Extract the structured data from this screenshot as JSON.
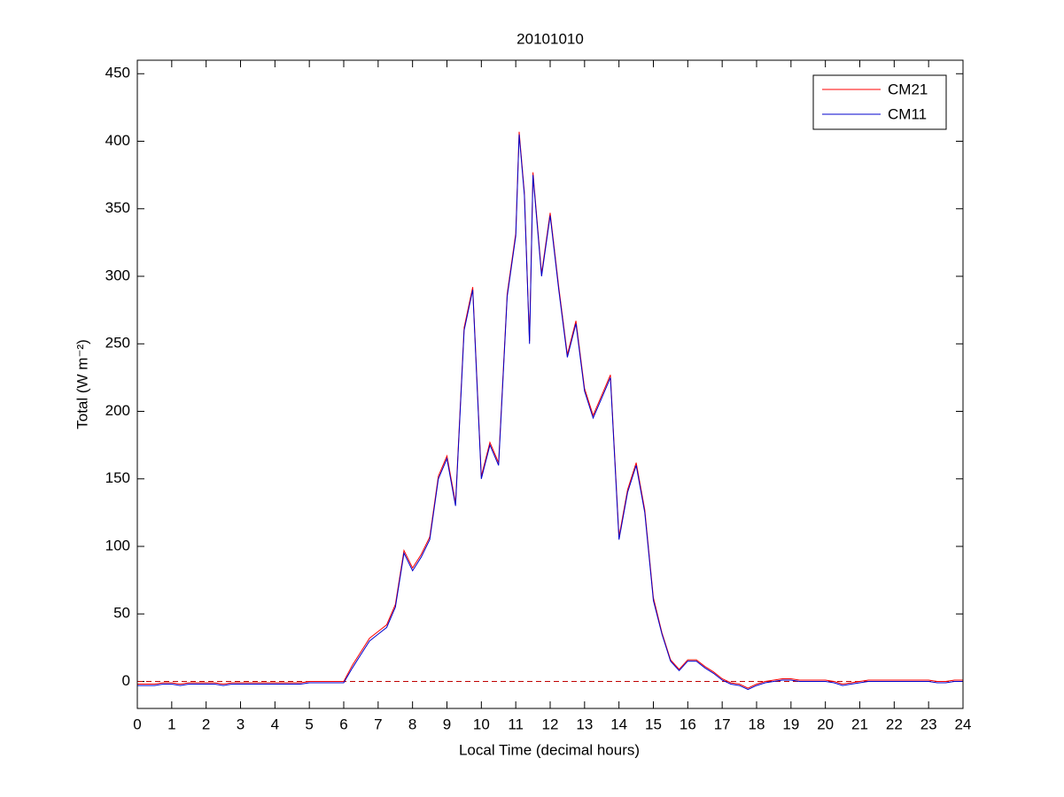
{
  "chart_data": {
    "type": "line",
    "title": "20101010",
    "xlabel": "Local Time (decimal hours)",
    "ylabel": "Total (W m⁻²)",
    "x": [
      0,
      0.25,
      0.5,
      0.75,
      1,
      1.25,
      1.5,
      1.75,
      2,
      2.25,
      2.5,
      2.75,
      3,
      3.25,
      3.5,
      3.75,
      4,
      4.25,
      4.5,
      4.75,
      5,
      5.25,
      5.5,
      5.75,
      6,
      6.25,
      6.5,
      6.75,
      7,
      7.25,
      7.5,
      7.75,
      8,
      8.25,
      8.5,
      8.75,
      9,
      9.25,
      9.5,
      9.75,
      10,
      10.25,
      10.5,
      10.75,
      11,
      11.1,
      11.25,
      11.4,
      11.5,
      11.75,
      12,
      12.25,
      12.5,
      12.75,
      13,
      13.25,
      13.5,
      13.75,
      14,
      14.25,
      14.5,
      14.75,
      15,
      15.25,
      15.5,
      15.75,
      16,
      16.25,
      16.5,
      16.75,
      17,
      17.25,
      17.5,
      17.75,
      18,
      18.25,
      18.5,
      18.75,
      19,
      19.25,
      19.5,
      19.75,
      20,
      20.25,
      20.5,
      20.75,
      21,
      21.25,
      21.5,
      21.75,
      22,
      22.25,
      22.5,
      22.75,
      23,
      23.25,
      23.5,
      23.75,
      24
    ],
    "series": [
      {
        "name": "CM21",
        "color": "#ff0000",
        "values": [
          -2,
          -2,
          -2,
          -1,
          -1,
          -2,
          -1,
          -1,
          -1,
          -1,
          -2,
          -1,
          -1,
          -1,
          -1,
          -1,
          -1,
          -1,
          -1,
          -1,
          0,
          0,
          0,
          0,
          0,
          12,
          22,
          32,
          37,
          42,
          57,
          97,
          84,
          94,
          107,
          152,
          167,
          132,
          262,
          292,
          152,
          177,
          162,
          287,
          332,
          407,
          362,
          252,
          377,
          302,
          347,
          292,
          242,
          267,
          217,
          197,
          212,
          227,
          107,
          142,
          162,
          127,
          62,
          36,
          16,
          9,
          16,
          16,
          11,
          7,
          2,
          -1,
          -2,
          -5,
          -2,
          0,
          1,
          2,
          2,
          1,
          1,
          1,
          1,
          0,
          -2,
          -1,
          0,
          1,
          1,
          1,
          1,
          1,
          1,
          1,
          1,
          0,
          0,
          1,
          1
        ]
      },
      {
        "name": "CM11",
        "color": "#0000cc",
        "values": [
          -3,
          -3,
          -3,
          -2,
          -2,
          -3,
          -2,
          -2,
          -2,
          -2,
          -3,
          -2,
          -2,
          -2,
          -2,
          -2,
          -2,
          -2,
          -2,
          -2,
          -1,
          -1,
          -1,
          -1,
          -1,
          10,
          20,
          30,
          35,
          40,
          55,
          95,
          82,
          92,
          105,
          150,
          165,
          130,
          260,
          290,
          150,
          175,
          160,
          285,
          330,
          405,
          360,
          250,
          375,
          300,
          345,
          290,
          240,
          265,
          215,
          195,
          210,
          225,
          105,
          140,
          160,
          125,
          60,
          35,
          15,
          8,
          15,
          15,
          10,
          6,
          1,
          -2,
          -3,
          -6,
          -3,
          -1,
          0,
          1,
          1,
          0,
          0,
          0,
          0,
          -1,
          -3,
          -2,
          -1,
          0,
          0,
          0,
          0,
          0,
          0,
          0,
          0,
          -1,
          -1,
          0,
          0
        ]
      }
    ],
    "hline": {
      "value": 0,
      "color": "#c00000"
    },
    "xlim": [
      0,
      24
    ],
    "xticks": [
      0,
      1,
      2,
      3,
      4,
      5,
      6,
      7,
      8,
      9,
      10,
      11,
      12,
      13,
      14,
      15,
      16,
      17,
      18,
      19,
      20,
      21,
      22,
      23,
      24
    ],
    "ylim": [
      -20,
      460
    ],
    "yticks": [
      0,
      50,
      100,
      150,
      200,
      250,
      300,
      350,
      400,
      450
    ],
    "legend": "northeast"
  }
}
